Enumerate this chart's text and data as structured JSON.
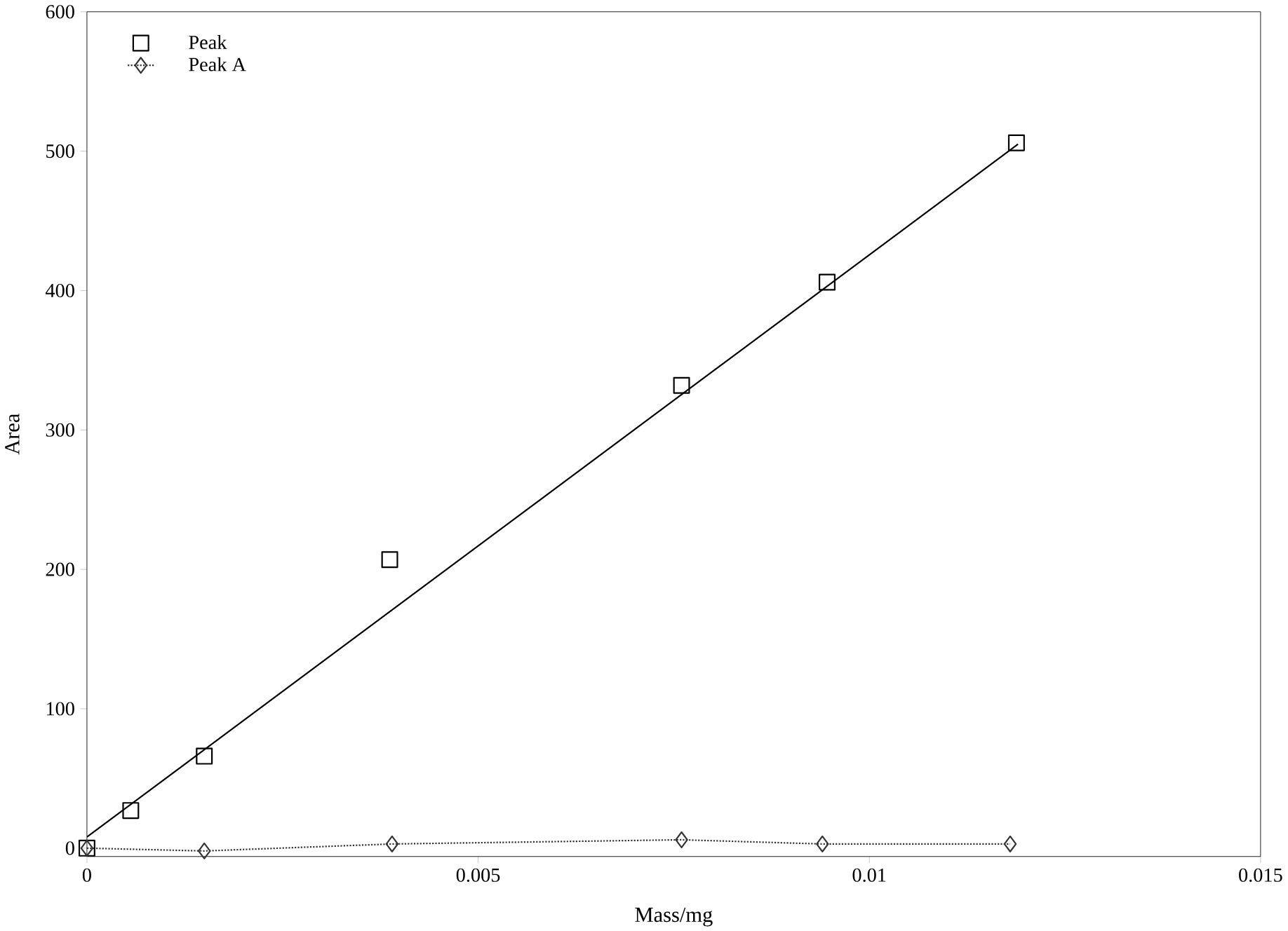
{
  "chart_data": {
    "type": "scatter",
    "xlabel": "Mass/mg",
    "ylabel": "Area",
    "xlim": [
      0,
      0.015
    ],
    "ylim": [
      -6,
      600
    ],
    "xticks": [
      0,
      0.005,
      0.01,
      0.015
    ],
    "yticks": [
      0,
      100,
      200,
      300,
      400,
      500,
      600
    ],
    "legend": "top left",
    "grid": false,
    "series": [
      {
        "name": "Peak",
        "marker": "square",
        "color": "#000000",
        "x": [
          0,
          0.00056,
          0.0015,
          0.00387,
          0.0076,
          0.00946,
          0.01188
        ],
        "values": [
          0,
          27,
          66,
          207,
          332,
          406,
          506
        ]
      },
      {
        "name": "Peak A",
        "type": "line",
        "marker": "diamond",
        "line_style": "dotted",
        "color": "#333333",
        "x": [
          0,
          0.0015,
          0.0039,
          0.0076,
          0.0094,
          0.0118
        ],
        "values": [
          0,
          -2,
          3,
          6,
          3,
          3
        ]
      },
      {
        "type": "line",
        "marker": "none",
        "line_style": "solid",
        "color": "#000000",
        "x": [
          0,
          0.0119
        ],
        "values": [
          8,
          505
        ]
      }
    ]
  }
}
